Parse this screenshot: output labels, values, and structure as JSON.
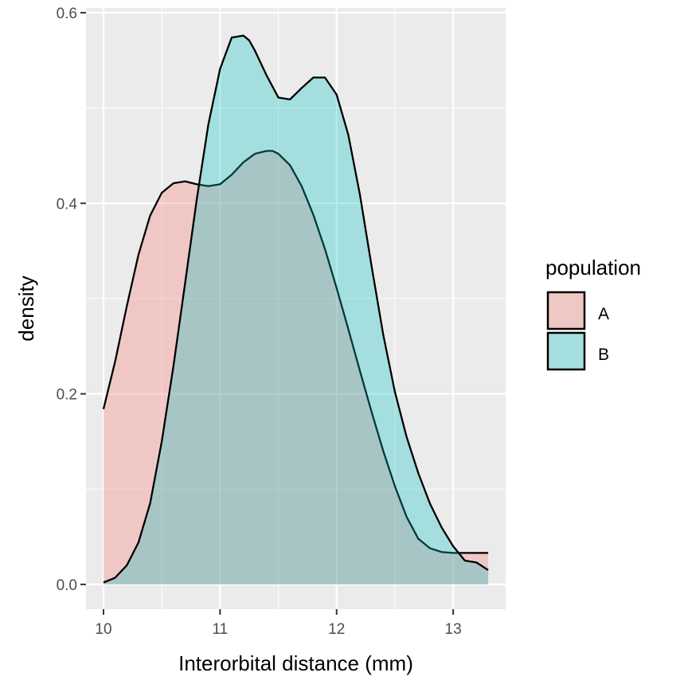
{
  "chart_data": {
    "type": "area",
    "subtype": "density",
    "title": "",
    "xlabel": "Interorbital distance (mm)",
    "ylabel": "density",
    "xlim": [
      9.85,
      13.45
    ],
    "ylim": [
      -0.026,
      0.605
    ],
    "x_ticks": [
      10,
      11,
      12,
      13
    ],
    "x_tick_labels": [
      "10",
      "11",
      "12",
      "13"
    ],
    "y_ticks": [
      0.0,
      0.2,
      0.4,
      0.6
    ],
    "y_tick_labels": [
      "0.0",
      "0.2",
      "0.4",
      "0.6"
    ],
    "grid": true,
    "legend": {
      "title": "population",
      "position": "right",
      "entries": [
        "A",
        "B"
      ]
    },
    "series": [
      {
        "name": "A",
        "fill": "#F8766D",
        "fill_opacity": 0.3,
        "x": [
          10.0,
          10.1,
          10.2,
          10.3,
          10.4,
          10.5,
          10.6,
          10.7,
          10.8,
          10.9,
          11.0,
          11.1,
          11.2,
          11.3,
          11.4,
          11.45,
          11.5,
          11.6,
          11.7,
          11.8,
          11.9,
          12.0,
          12.1,
          12.2,
          12.3,
          12.4,
          12.5,
          12.6,
          12.7,
          12.8,
          12.9,
          13.0,
          13.1,
          13.2,
          13.3
        ],
        "values": [
          0.184,
          0.234,
          0.292,
          0.346,
          0.387,
          0.411,
          0.421,
          0.423,
          0.42,
          0.418,
          0.42,
          0.43,
          0.443,
          0.452,
          0.455,
          0.455,
          0.452,
          0.44,
          0.418,
          0.388,
          0.352,
          0.311,
          0.268,
          0.224,
          0.181,
          0.14,
          0.103,
          0.071,
          0.048,
          0.038,
          0.034,
          0.033,
          0.033,
          0.033,
          0.033
        ]
      },
      {
        "name": "B",
        "fill": "#00BFC4",
        "fill_opacity": 0.3,
        "x": [
          10.0,
          10.1,
          10.2,
          10.3,
          10.4,
          10.5,
          10.6,
          10.7,
          10.8,
          10.9,
          11.0,
          11.1,
          11.2,
          11.25,
          11.3,
          11.4,
          11.5,
          11.6,
          11.7,
          11.8,
          11.9,
          12.0,
          12.1,
          12.2,
          12.3,
          12.4,
          12.5,
          12.6,
          12.7,
          12.8,
          12.9,
          13.0,
          13.1,
          13.2,
          13.3
        ],
        "values": [
          0.002,
          0.007,
          0.02,
          0.044,
          0.085,
          0.15,
          0.229,
          0.316,
          0.404,
          0.483,
          0.541,
          0.574,
          0.576,
          0.571,
          0.56,
          0.534,
          0.511,
          0.509,
          0.521,
          0.532,
          0.532,
          0.514,
          0.472,
          0.409,
          0.334,
          0.262,
          0.202,
          0.155,
          0.117,
          0.085,
          0.06,
          0.04,
          0.025,
          0.023,
          0.015
        ]
      }
    ]
  }
}
